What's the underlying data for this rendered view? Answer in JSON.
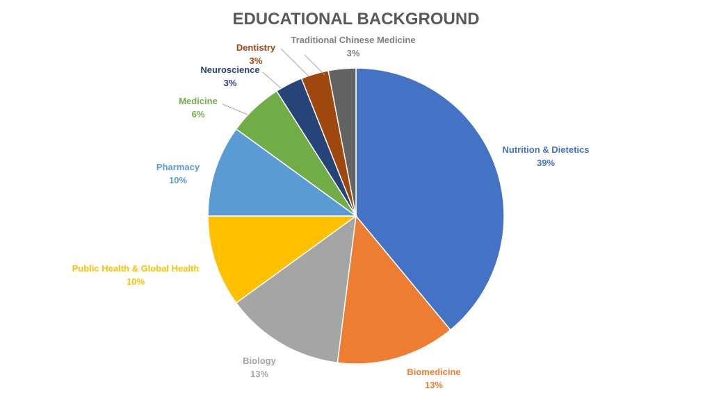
{
  "chart_data": {
    "type": "pie",
    "title": "EDUCATIONAL BACKGROUND",
    "start_angle_deg": 0,
    "direction": "clockwise",
    "slices": [
      {
        "label": "Nutrition & Dietetics",
        "value": 39,
        "value_label": "39%",
        "color": "#4472C4"
      },
      {
        "label": "Biomedicine",
        "value": 13,
        "value_label": "13%",
        "color": "#ED7D31"
      },
      {
        "label": "Biology",
        "value": 13,
        "value_label": "13%",
        "color": "#A5A5A5"
      },
      {
        "label": "Public Health & Global Health",
        "value": 10,
        "value_label": "10%",
        "color": "#FFC000"
      },
      {
        "label": "Pharmacy",
        "value": 10,
        "value_label": "10%",
        "color": "#5B9BD5"
      },
      {
        "label": "Medicine",
        "value": 6,
        "value_label": "6%",
        "color": "#70AD47"
      },
      {
        "label": "Neuroscience",
        "value": 3,
        "value_label": "3%",
        "color": "#264478"
      },
      {
        "label": "Dentistry",
        "value": 3,
        "value_label": "3%",
        "color": "#9E480E"
      },
      {
        "label": "Traditional Chinese Medicine",
        "value": 3,
        "value_label": "3%",
        "color": "#636363"
      }
    ]
  }
}
